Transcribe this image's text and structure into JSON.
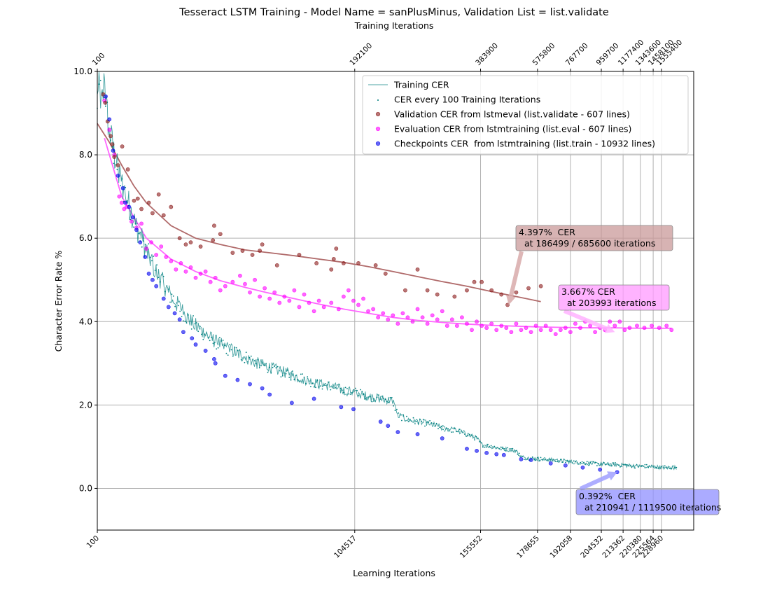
{
  "chart_data": {
    "type": "scatter",
    "title": "Tesseract LSTM Training - Model Name = sanPlusMinus, Validation List = list.validate",
    "xlabel_top": "Training Iterations",
    "xlabel": "Learning Iterations",
    "ylabel": "Character Error Rate %",
    "ylim": [
      -1.0,
      10.0
    ],
    "xlim": [
      100,
      242000
    ],
    "grid": true,
    "legend_position": "top-right",
    "y_ticks": [
      {
        "value": 0.0,
        "label": "0.0"
      },
      {
        "value": 2.0,
        "label": "2.0"
      },
      {
        "value": 4.0,
        "label": "4.0"
      },
      {
        "value": 6.0,
        "label": "6.0"
      },
      {
        "value": 8.0,
        "label": "8.0"
      },
      {
        "value": 10.0,
        "label": "10.0"
      }
    ],
    "x_ticks_bottom": [
      {
        "value": 100,
        "label": "100"
      },
      {
        "value": 104517,
        "label": "104517"
      },
      {
        "value": 155552,
        "label": "155552"
      },
      {
        "value": 178655,
        "label": "178655"
      },
      {
        "value": 192058,
        "label": "192058"
      },
      {
        "value": 204532,
        "label": "204532"
      },
      {
        "value": 213362,
        "label": "213362"
      },
      {
        "value": 220380,
        "label": "220380"
      },
      {
        "value": 225564,
        "label": "225564"
      },
      {
        "value": 228960,
        "label": "228960"
      }
    ],
    "x_ticks_top": [
      {
        "value": 100,
        "label": "100"
      },
      {
        "value": 104517,
        "label": "192100"
      },
      {
        "value": 155552,
        "label": "383900"
      },
      {
        "value": 178655,
        "label": "575800"
      },
      {
        "value": 192058,
        "label": "767700"
      },
      {
        "value": 204532,
        "label": "959700"
      },
      {
        "value": 213362,
        "label": "1177400"
      },
      {
        "value": 220380,
        "label": "1343600"
      },
      {
        "value": 225564,
        "label": "1458100"
      },
      {
        "value": 228960,
        "label": "1555400"
      }
    ],
    "legend": [
      {
        "key": "training",
        "label": "Training CER",
        "color": "#008080"
      },
      {
        "key": "every100",
        "label": "CER every 100 Training Iterations",
        "color": "#008080"
      },
      {
        "key": "validation",
        "label": "Validation CER from lstmeval (list.validate - 607 lines)",
        "color": "#8b1a1a"
      },
      {
        "key": "evaluation",
        "label": "Evaluation CER from lstmtraining (list.eval - 607 lines)",
        "color": "#ff00ff"
      },
      {
        "key": "checkpoints",
        "label": "Checkpoints CER  from lstmtraining (list.train - 10932 lines)",
        "color": "#0000ee"
      }
    ],
    "colors": {
      "training": "#008080",
      "validation": "#8b1a1a",
      "validation_fit": "#b06a6a",
      "evaluation": "#ff00ff",
      "evaluation_fit": "#ff66ff",
      "checkpoints": "#0000ee"
    },
    "validation_points": [
      [
        2500,
        9.45
      ],
      [
        3300,
        9.25
      ],
      [
        4300,
        8.8
      ],
      [
        5500,
        8.45
      ],
      [
        6200,
        8.25
      ],
      [
        7000,
        7.95
      ],
      [
        8500,
        7.75
      ],
      [
        10200,
        8.2
      ],
      [
        12500,
        7.65
      ],
      [
        15000,
        6.9
      ],
      [
        16500,
        6.95
      ],
      [
        18000,
        6.7
      ],
      [
        21000,
        6.85
      ],
      [
        22500,
        6.6
      ],
      [
        25000,
        7.05
      ],
      [
        27000,
        6.55
      ],
      [
        30000,
        6.75
      ],
      [
        33500,
        6.0
      ],
      [
        36000,
        5.85
      ],
      [
        38000,
        5.9
      ],
      [
        42000,
        5.8
      ],
      [
        47000,
        5.95
      ],
      [
        47500,
        6.3
      ],
      [
        50000,
        6.1
      ],
      [
        55000,
        5.65
      ],
      [
        59000,
        5.7
      ],
      [
        63000,
        5.6
      ],
      [
        66000,
        5.7
      ],
      [
        67000,
        5.85
      ],
      [
        73000,
        5.35
      ],
      [
        82000,
        5.6
      ],
      [
        89000,
        5.4
      ],
      [
        95000,
        5.25
      ],
      [
        96000,
        5.5
      ],
      [
        97000,
        5.75
      ],
      [
        100000,
        5.4
      ],
      [
        106000,
        5.4
      ],
      [
        113000,
        5.35
      ],
      [
        117000,
        5.15
      ],
      [
        125000,
        4.75
      ],
      [
        130000,
        5.25
      ],
      [
        134000,
        4.75
      ],
      [
        138000,
        4.65
      ],
      [
        145000,
        4.6
      ],
      [
        150000,
        4.75
      ],
      [
        153000,
        4.95
      ],
      [
        156000,
        4.95
      ],
      [
        160000,
        4.75
      ],
      [
        164000,
        4.65
      ],
      [
        166500,
        4.4
      ],
      [
        170000,
        4.7
      ],
      [
        175000,
        4.8
      ],
      [
        180000,
        4.85
      ]
    ],
    "validation_fit": [
      [
        100,
        8.75
      ],
      [
        5000,
        8.3
      ],
      [
        10000,
        7.75
      ],
      [
        15000,
        7.25
      ],
      [
        20000,
        6.85
      ],
      [
        30000,
        6.3
      ],
      [
        40000,
        6.0
      ],
      [
        50000,
        5.85
      ],
      [
        60000,
        5.72
      ],
      [
        70000,
        5.65
      ],
      [
        80000,
        5.58
      ],
      [
        90000,
        5.5
      ],
      [
        100000,
        5.42
      ],
      [
        110000,
        5.32
      ],
      [
        120000,
        5.2
      ],
      [
        130000,
        5.08
      ],
      [
        140000,
        4.96
      ],
      [
        150000,
        4.85
      ],
      [
        160000,
        4.72
      ],
      [
        170000,
        4.6
      ],
      [
        180000,
        4.48
      ]
    ],
    "evaluation_points": [
      [
        3000,
        9.3
      ],
      [
        5000,
        8.6
      ],
      [
        7000,
        8.0
      ],
      [
        9000,
        7.0
      ],
      [
        10000,
        6.85
      ],
      [
        11000,
        6.7
      ],
      [
        12000,
        6.75
      ],
      [
        14000,
        6.4
      ],
      [
        16000,
        6.25
      ],
      [
        18000,
        6.35
      ],
      [
        20000,
        5.75
      ],
      [
        22000,
        5.9
      ],
      [
        24000,
        5.6
      ],
      [
        26000,
        5.8
      ],
      [
        28000,
        5.55
      ],
      [
        30000,
        5.45
      ],
      [
        32000,
        5.25
      ],
      [
        34000,
        5.4
      ],
      [
        36000,
        5.2
      ],
      [
        38000,
        5.3
      ],
      [
        40000,
        5.05
      ],
      [
        42000,
        5.15
      ],
      [
        44000,
        5.2
      ],
      [
        46000,
        4.95
      ],
      [
        48000,
        5.05
      ],
      [
        50000,
        4.75
      ],
      [
        52000,
        4.85
      ],
      [
        55000,
        4.95
      ],
      [
        58000,
        5.1
      ],
      [
        60000,
        4.9
      ],
      [
        62000,
        4.7
      ],
      [
        64000,
        5.0
      ],
      [
        66000,
        4.6
      ],
      [
        68000,
        4.8
      ],
      [
        70000,
        4.55
      ],
      [
        72000,
        4.7
      ],
      [
        74000,
        4.45
      ],
      [
        76000,
        4.6
      ],
      [
        78000,
        4.5
      ],
      [
        80000,
        4.75
      ],
      [
        82000,
        4.35
      ],
      [
        84000,
        4.65
      ],
      [
        86000,
        4.45
      ],
      [
        88000,
        4.25
      ],
      [
        90000,
        4.5
      ],
      [
        92000,
        4.35
      ],
      [
        95000,
        4.45
      ],
      [
        98000,
        4.3
      ],
      [
        100000,
        4.6
      ],
      [
        102000,
        4.75
      ],
      [
        104000,
        4.5
      ],
      [
        106000,
        4.4
      ],
      [
        108000,
        4.55
      ],
      [
        110000,
        4.25
      ],
      [
        112000,
        4.3
      ],
      [
        114000,
        4.1
      ],
      [
        116000,
        4.2
      ],
      [
        118000,
        4.05
      ],
      [
        120000,
        4.15
      ],
      [
        122000,
        3.95
      ],
      [
        124000,
        4.2
      ],
      [
        126000,
        4.1
      ],
      [
        128000,
        4.0
      ],
      [
        130000,
        4.3
      ],
      [
        132000,
        4.1
      ],
      [
        134000,
        3.95
      ],
      [
        136000,
        4.15
      ],
      [
        138000,
        4.05
      ],
      [
        140000,
        4.25
      ],
      [
        142000,
        3.9
      ],
      [
        144000,
        4.05
      ],
      [
        146000,
        3.9
      ],
      [
        148000,
        4.1
      ],
      [
        150000,
        3.95
      ],
      [
        152000,
        3.8
      ],
      [
        154000,
        4.0
      ],
      [
        156000,
        3.9
      ],
      [
        158000,
        3.85
      ],
      [
        160000,
        3.95
      ],
      [
        162000,
        3.8
      ],
      [
        164000,
        3.9
      ],
      [
        166000,
        3.85
      ],
      [
        168000,
        3.75
      ],
      [
        170000,
        3.95
      ],
      [
        172000,
        3.8
      ],
      [
        174000,
        3.85
      ],
      [
        176000,
        3.75
      ],
      [
        178000,
        3.9
      ],
      [
        180000,
        3.8
      ],
      [
        182000,
        3.9
      ],
      [
        184000,
        3.8
      ],
      [
        186000,
        3.7
      ],
      [
        188000,
        3.8
      ],
      [
        190000,
        3.85
      ],
      [
        192000,
        3.75
      ],
      [
        194000,
        3.95
      ],
      [
        196000,
        3.85
      ],
      [
        198000,
        4.0
      ],
      [
        200000,
        3.9
      ],
      [
        202000,
        3.75
      ],
      [
        204000,
        3.85
      ],
      [
        206000,
        3.8
      ],
      [
        208000,
        4.0
      ],
      [
        210000,
        3.9
      ],
      [
        212000,
        4.0
      ],
      [
        214000,
        3.8
      ],
      [
        216000,
        3.85
      ],
      [
        219000,
        3.9
      ],
      [
        222000,
        3.85
      ],
      [
        225000,
        3.9
      ],
      [
        228000,
        3.85
      ],
      [
        231000,
        3.9
      ],
      [
        233000,
        3.8
      ]
    ],
    "evaluation_fit": [
      [
        3000,
        8.4
      ],
      [
        10000,
        7.0
      ],
      [
        20000,
        6.0
      ],
      [
        30000,
        5.5
      ],
      [
        40000,
        5.2
      ],
      [
        50000,
        4.98
      ],
      [
        60000,
        4.82
      ],
      [
        70000,
        4.68
      ],
      [
        80000,
        4.55
      ],
      [
        90000,
        4.42
      ],
      [
        100000,
        4.3
      ],
      [
        110000,
        4.2
      ],
      [
        120000,
        4.1
      ],
      [
        130000,
        4.03
      ],
      [
        140000,
        3.98
      ],
      [
        150000,
        3.94
      ],
      [
        160000,
        3.91
      ],
      [
        170000,
        3.89
      ],
      [
        180000,
        3.87
      ],
      [
        190000,
        3.86
      ],
      [
        200000,
        3.85
      ],
      [
        210000,
        3.85
      ],
      [
        220000,
        3.84
      ],
      [
        233000,
        3.84
      ]
    ],
    "checkpoint_points": [
      [
        3500,
        9.4
      ],
      [
        5000,
        8.85
      ],
      [
        6500,
        8.1
      ],
      [
        8500,
        7.5
      ],
      [
        10500,
        7.2
      ],
      [
        11500,
        6.85
      ],
      [
        13000,
        6.75
      ],
      [
        14500,
        6.5
      ],
      [
        16000,
        6.2
      ],
      [
        17500,
        5.9
      ],
      [
        19500,
        5.55
      ],
      [
        21000,
        5.15
      ],
      [
        22500,
        5.0
      ],
      [
        24000,
        4.85
      ],
      [
        27000,
        4.55
      ],
      [
        29000,
        4.35
      ],
      [
        31500,
        4.2
      ],
      [
        33500,
        4.05
      ],
      [
        35000,
        3.75
      ],
      [
        38500,
        3.6
      ],
      [
        40000,
        3.45
      ],
      [
        44000,
        3.3
      ],
      [
        47500,
        3.1
      ],
      [
        48000,
        3.0
      ],
      [
        52000,
        2.7
      ],
      [
        57000,
        2.6
      ],
      [
        62000,
        2.5
      ],
      [
        67000,
        2.4
      ],
      [
        70000,
        2.25
      ],
      [
        79000,
        2.05
      ],
      [
        88000,
        2.15
      ],
      [
        99000,
        1.95
      ],
      [
        104000,
        1.9
      ],
      [
        115000,
        1.6
      ],
      [
        118000,
        1.5
      ],
      [
        122000,
        1.35
      ],
      [
        130000,
        1.3
      ],
      [
        140000,
        1.2
      ],
      [
        150000,
        0.95
      ],
      [
        154000,
        0.9
      ],
      [
        158000,
        0.85
      ],
      [
        162000,
        0.82
      ],
      [
        165000,
        0.8
      ],
      [
        172000,
        0.7
      ],
      [
        176000,
        0.68
      ],
      [
        184000,
        0.6
      ],
      [
        190000,
        0.55
      ],
      [
        197000,
        0.5
      ],
      [
        204000,
        0.45
      ],
      [
        210941,
        0.39
      ]
    ],
    "training_curve": [
      [
        100,
        9.3
      ],
      [
        1000,
        9.6
      ],
      [
        2000,
        9.2
      ],
      [
        3000,
        9.8
      ],
      [
        4000,
        9.0
      ],
      [
        5000,
        8.6
      ],
      [
        6000,
        8.3
      ],
      [
        7000,
        8.0
      ],
      [
        8000,
        7.7
      ],
      [
        10000,
        7.3
      ],
      [
        12000,
        7.0
      ],
      [
        14000,
        6.6
      ],
      [
        16000,
        6.25
      ],
      [
        18000,
        6.0
      ],
      [
        20000,
        5.7
      ],
      [
        22000,
        5.45
      ],
      [
        24000,
        5.2
      ],
      [
        26000,
        5.0
      ],
      [
        28000,
        4.8
      ],
      [
        30000,
        4.6
      ],
      [
        34000,
        4.3
      ],
      [
        38000,
        4.0
      ],
      [
        42000,
        3.8
      ],
      [
        46000,
        3.6
      ],
      [
        50000,
        3.45
      ],
      [
        55000,
        3.3
      ],
      [
        60000,
        3.15
      ],
      [
        65000,
        3.0
      ],
      [
        70000,
        2.9
      ],
      [
        75000,
        2.8
      ],
      [
        80000,
        2.7
      ],
      [
        85000,
        2.6
      ],
      [
        90000,
        2.5
      ],
      [
        95000,
        2.45
      ],
      [
        100000,
        2.35
      ],
      [
        105000,
        2.3
      ],
      [
        110000,
        2.2
      ],
      [
        115000,
        2.15
      ],
      [
        120000,
        2.1
      ],
      [
        122000,
        1.75
      ],
      [
        126000,
        1.65
      ],
      [
        130000,
        1.6
      ],
      [
        135000,
        1.55
      ],
      [
        140000,
        1.45
      ],
      [
        145000,
        1.4
      ],
      [
        150000,
        1.3
      ],
      [
        154000,
        1.2
      ],
      [
        156000,
        1.05
      ],
      [
        160000,
        1.0
      ],
      [
        165000,
        0.95
      ],
      [
        170000,
        0.9
      ],
      [
        172000,
        0.75
      ],
      [
        176000,
        0.72
      ],
      [
        180000,
        0.7
      ],
      [
        185000,
        0.68
      ],
      [
        190000,
        0.65
      ],
      [
        195000,
        0.62
      ],
      [
        200000,
        0.6
      ],
      [
        205000,
        0.58
      ],
      [
        210000,
        0.57
      ],
      [
        215000,
        0.55
      ],
      [
        220000,
        0.53
      ],
      [
        225000,
        0.52
      ],
      [
        230000,
        0.5
      ],
      [
        235000,
        0.5
      ]
    ],
    "annotations": [
      {
        "key": "validation",
        "text_line1": "4.397%  CER",
        "text_line2": "  at 186499 / 685600 iterations",
        "target": [
          167000,
          4.4
        ],
        "bg": "#c99a9a",
        "arrow": "#d8aaaa"
      },
      {
        "key": "evaluation",
        "text_line1": "3.667% CER",
        "text_line2": "  at 203993 iterations",
        "target": [
          210000,
          3.75
        ],
        "bg": "#ff99ff",
        "arrow": "#ffb3ff"
      },
      {
        "key": "checkpoints",
        "text_line1": "0.392%  CER",
        "text_line2": "  at 210941 / 1119500 iterations",
        "target": [
          211000,
          0.39
        ],
        "bg": "#8f8fff",
        "arrow": "#a0a0ff"
      }
    ]
  }
}
